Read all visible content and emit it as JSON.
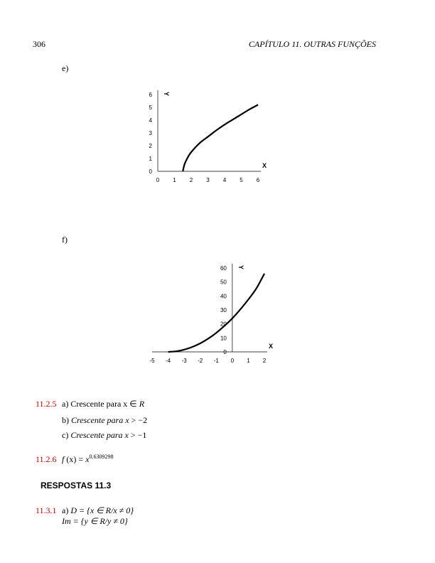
{
  "header": {
    "page_number": "306",
    "chapter_title": "CAPÍTULO 11.  OUTRAS FUNÇÕES"
  },
  "items": {
    "e_label": "e)",
    "f_label": "f)"
  },
  "chart_data": [
    {
      "type": "line",
      "id": "e",
      "xlabel": "X",
      "ylabel": "Y",
      "xlim": [
        0,
        6
      ],
      "ylim": [
        0,
        6
      ],
      "x_ticks": [
        "0",
        "1",
        "2",
        "3",
        "4",
        "5",
        "6"
      ],
      "y_ticks": [
        "0",
        "1",
        "2",
        "3",
        "4",
        "5",
        "6"
      ],
      "series": [
        {
          "x": [
            1.5,
            1.6,
            1.8,
            2.0,
            2.5,
            3.0,
            3.5,
            4.0,
            4.5,
            5.0,
            5.5,
            6.0
          ],
          "y": [
            0.0,
            0.55,
            1.1,
            1.5,
            2.2,
            2.7,
            3.2,
            3.65,
            4.05,
            4.45,
            4.85,
            5.2
          ]
        }
      ]
    },
    {
      "type": "line",
      "id": "f",
      "xlabel": "X",
      "ylabel": "Y",
      "xlim": [
        -5,
        2
      ],
      "ylim": [
        0,
        60
      ],
      "x_ticks": [
        "-5",
        "-4",
        "-3",
        "-2",
        "-1",
        "0",
        "1",
        "2"
      ],
      "y_ticks": [
        "0",
        "10",
        "20",
        "30",
        "40",
        "50",
        "60"
      ],
      "series": [
        {
          "x": [
            -4.0,
            -3.5,
            -3.0,
            -2.5,
            -2.0,
            -1.5,
            -1.0,
            -0.5,
            0.0,
            0.5,
            1.0,
            1.5,
            2.0
          ],
          "y": [
            0.0,
            0.4,
            1.6,
            3.5,
            6.1,
            9.5,
            13.6,
            18.5,
            24.0,
            30.4,
            37.5,
            45.4,
            56.0
          ]
        }
      ]
    }
  ],
  "answers": {
    "a_11_2_5": {
      "number": "11.2.5",
      "a_prefix": "a) Crescente para x ∈ ",
      "a_var": "R",
      "b_prefix": "b) ",
      "b_italic": "Crescente para x",
      "b_rel": " > −2",
      "c_prefix": "c) ",
      "c_italic": "Crescente para x",
      "c_rel": " > −1"
    },
    "a_11_2_6": {
      "number": "11.2.6",
      "f": "f",
      "arg": " (x) = ",
      "base": "x",
      "exponent": "0.6309298"
    },
    "section_heading": "RESPOSTAS 11.3",
    "a_11_3_1": {
      "number": "11.3.1",
      "line1_prefix": "a) ",
      "line1_math": "D = {x ∈ R/x ≠ 0}",
      "line2_math": "Im = {y ∈ R/y ≠ 0}"
    }
  }
}
